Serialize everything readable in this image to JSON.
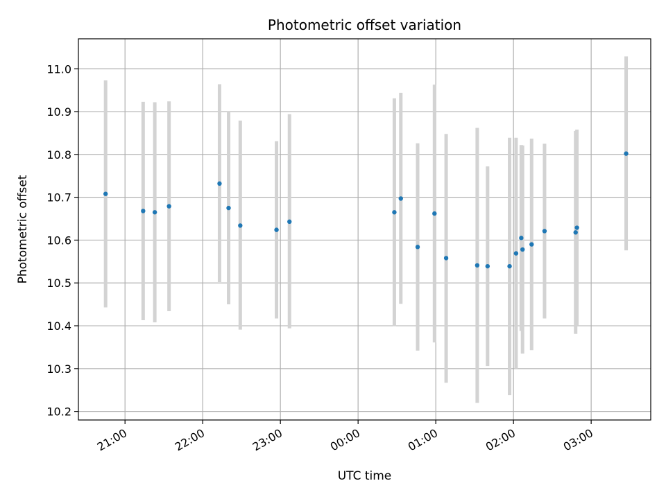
{
  "chart_data": {
    "type": "scatter",
    "title": "Photometric offset variation",
    "xlabel": "UTC time",
    "ylabel": "Photometric offset",
    "x_axis": {
      "kind": "time",
      "range": [
        "20:24",
        "03:46"
      ],
      "ticks": [
        "21:00",
        "22:00",
        "23:00",
        "00:00",
        "01:00",
        "02:00",
        "03:00"
      ]
    },
    "y_axis": {
      "range": [
        10.18,
        11.07
      ],
      "ticks": [
        "10.2",
        "10.3",
        "10.4",
        "10.5",
        "10.6",
        "10.7",
        "10.8",
        "10.9",
        "11.0"
      ]
    },
    "grid": true,
    "legend": "none",
    "colors": {
      "point": "#1f77b4",
      "errorbar": "#d3d3d3",
      "grid": "#b0b0b0"
    },
    "points": [
      {
        "time": "20:45",
        "y": 10.708,
        "ylow": 10.443,
        "yhigh": 10.973
      },
      {
        "time": "21:14",
        "y": 10.668,
        "ylow": 10.413,
        "yhigh": 10.923
      },
      {
        "time": "21:23",
        "y": 10.665,
        "ylow": 10.408,
        "yhigh": 10.922
      },
      {
        "time": "21:34",
        "y": 10.679,
        "ylow": 10.434,
        "yhigh": 10.924
      },
      {
        "time": "22:13",
        "y": 10.732,
        "ylow": 10.502,
        "yhigh": 10.964
      },
      {
        "time": "22:20",
        "y": 10.675,
        "ylow": 10.45,
        "yhigh": 10.9
      },
      {
        "time": "22:29",
        "y": 10.634,
        "ylow": 10.391,
        "yhigh": 10.879
      },
      {
        "time": "22:57",
        "y": 10.624,
        "ylow": 10.417,
        "yhigh": 10.831
      },
      {
        "time": "23:07",
        "y": 10.643,
        "ylow": 10.394,
        "yhigh": 10.894
      },
      {
        "time": "00:28",
        "y": 10.665,
        "ylow": 10.399,
        "yhigh": 10.931
      },
      {
        "time": "00:33",
        "y": 10.697,
        "ylow": 10.451,
        "yhigh": 10.944
      },
      {
        "time": "00:46",
        "y": 10.584,
        "ylow": 10.342,
        "yhigh": 10.826
      },
      {
        "time": "00:59",
        "y": 10.662,
        "ylow": 10.361,
        "yhigh": 10.963
      },
      {
        "time": "01:08",
        "y": 10.558,
        "ylow": 10.267,
        "yhigh": 10.848
      },
      {
        "time": "01:32",
        "y": 10.541,
        "ylow": 10.22,
        "yhigh": 10.862
      },
      {
        "time": "01:40",
        "y": 10.539,
        "ylow": 10.306,
        "yhigh": 10.772
      },
      {
        "time": "01:57",
        "y": 10.539,
        "ylow": 10.238,
        "yhigh": 10.839
      },
      {
        "time": "02:02",
        "y": 10.569,
        "ylow": 10.3,
        "yhigh": 10.839
      },
      {
        "time": "02:06",
        "y": 10.605,
        "ylow": 10.388,
        "yhigh": 10.822
      },
      {
        "time": "02:07",
        "y": 10.578,
        "ylow": 10.335,
        "yhigh": 10.821
      },
      {
        "time": "02:14",
        "y": 10.59,
        "ylow": 10.343,
        "yhigh": 10.837
      },
      {
        "time": "02:24",
        "y": 10.621,
        "ylow": 10.417,
        "yhigh": 10.825
      },
      {
        "time": "02:48",
        "y": 10.618,
        "ylow": 10.381,
        "yhigh": 10.855
      },
      {
        "time": "02:49",
        "y": 10.629,
        "ylow": 10.4,
        "yhigh": 10.858
      },
      {
        "time": "03:27",
        "y": 10.802,
        "ylow": 10.576,
        "yhigh": 11.029
      }
    ]
  }
}
